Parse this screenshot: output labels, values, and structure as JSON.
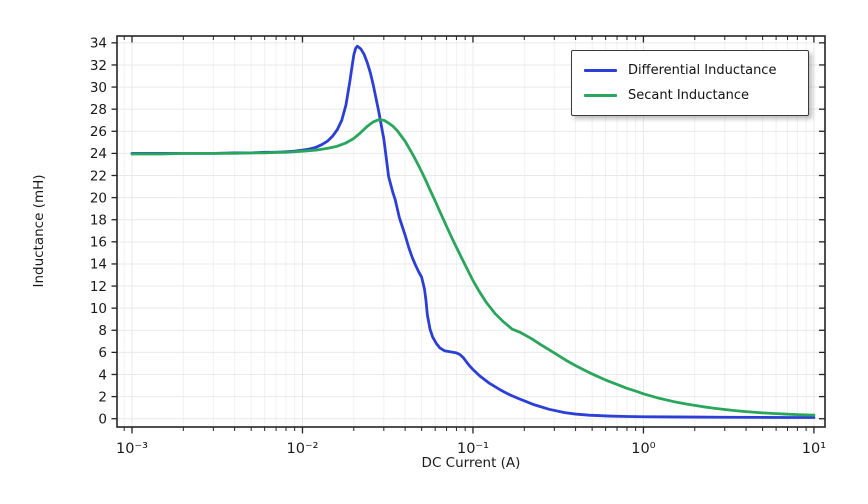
{
  "figure": {
    "background": "#ffffff",
    "frame_color": "#242424",
    "tick_color": "#242424",
    "grid_major_color": "#e9e9e9",
    "grid_minor_color": "#f1f1f1",
    "text_color": "#1a1a1a"
  },
  "axes": {
    "xlabel": "DC Current (A)",
    "ylabel": "Inductance (mH)",
    "x_scale": "log",
    "x_decade_exponents": [
      -3,
      -2,
      -1,
      0,
      1
    ],
    "x_tick_labels": [
      "10⁻³",
      "10⁻²",
      "10⁻¹",
      "10⁰",
      "10¹"
    ],
    "x_minor_mantissas": [
      2,
      3,
      4,
      5,
      6,
      7,
      8,
      9
    ],
    "x_range_exp": [
      -3.088,
      1.065
    ],
    "y_range_draw": [
      -0.75,
      34.62
    ],
    "y_ticks": [
      0,
      2,
      4,
      6,
      8,
      10,
      12,
      14,
      16,
      18,
      20,
      22,
      24,
      26,
      28,
      30,
      32,
      34
    ]
  },
  "legend": {
    "position": "top-right"
  },
  "chart_data": {
    "type": "line",
    "title": "",
    "xlabel": "DC Current (A)",
    "ylabel": "Inductance (mH)",
    "x_scale": "log",
    "xlim": [
      0.00082,
      11.6
    ],
    "ylim": [
      0,
      34
    ],
    "grid": true,
    "legend_position": "top-right",
    "series": [
      {
        "name": "Differential Inductance",
        "color": "#2b3fd6",
        "points": [
          [
            0.001,
            24.0
          ],
          [
            0.0015,
            24.0
          ],
          [
            0.002,
            24.0
          ],
          [
            0.003,
            24.0
          ],
          [
            0.004,
            24.05
          ],
          [
            0.005,
            24.05
          ],
          [
            0.006,
            24.1
          ],
          [
            0.007,
            24.1
          ],
          [
            0.008,
            24.15
          ],
          [
            0.009,
            24.2
          ],
          [
            0.01,
            24.3
          ],
          [
            0.011,
            24.4
          ],
          [
            0.012,
            24.55
          ],
          [
            0.013,
            24.8
          ],
          [
            0.014,
            25.1
          ],
          [
            0.015,
            25.55
          ],
          [
            0.016,
            26.15
          ],
          [
            0.017,
            27.0
          ],
          [
            0.018,
            28.4
          ],
          [
            0.019,
            30.6
          ],
          [
            0.0195,
            31.8
          ],
          [
            0.02,
            32.9
          ],
          [
            0.0205,
            33.5
          ],
          [
            0.021,
            33.7
          ],
          [
            0.022,
            33.45
          ],
          [
            0.023,
            32.95
          ],
          [
            0.024,
            32.2
          ],
          [
            0.025,
            31.3
          ],
          [
            0.026,
            30.2
          ],
          [
            0.028,
            27.8
          ],
          [
            0.03,
            25.3
          ],
          [
            0.031,
            23.6
          ],
          [
            0.032,
            21.9
          ],
          [
            0.034,
            20.4
          ],
          [
            0.035,
            19.8
          ],
          [
            0.037,
            18.2
          ],
          [
            0.04,
            16.6
          ],
          [
            0.042,
            15.5
          ],
          [
            0.044,
            14.6
          ],
          [
            0.046,
            13.9
          ],
          [
            0.048,
            13.3
          ],
          [
            0.05,
            12.8
          ],
          [
            0.052,
            11.7
          ],
          [
            0.053,
            10.7
          ],
          [
            0.054,
            9.4
          ],
          [
            0.056,
            8.1
          ],
          [
            0.058,
            7.4
          ],
          [
            0.061,
            6.8
          ],
          [
            0.064,
            6.4
          ],
          [
            0.068,
            6.15
          ],
          [
            0.074,
            6.05
          ],
          [
            0.08,
            5.95
          ],
          [
            0.084,
            5.8
          ],
          [
            0.088,
            5.5
          ],
          [
            0.092,
            5.1
          ],
          [
            0.096,
            4.75
          ],
          [
            0.1,
            4.45
          ],
          [
            0.11,
            3.85
          ],
          [
            0.125,
            3.2
          ],
          [
            0.145,
            2.6
          ],
          [
            0.165,
            2.15
          ],
          [
            0.19,
            1.75
          ],
          [
            0.23,
            1.25
          ],
          [
            0.28,
            0.85
          ],
          [
            0.345,
            0.55
          ],
          [
            0.4,
            0.42
          ],
          [
            0.48,
            0.32
          ],
          [
            0.63,
            0.24
          ],
          [
            0.8,
            0.2
          ],
          [
            1.0,
            0.18
          ],
          [
            1.5,
            0.16
          ],
          [
            2.0,
            0.15
          ],
          [
            3.0,
            0.13
          ],
          [
            5.0,
            0.12
          ],
          [
            7.0,
            0.11
          ],
          [
            10.0,
            0.11
          ]
        ]
      },
      {
        "name": "Secant Inductance",
        "color": "#29a65b",
        "points": [
          [
            0.001,
            23.95
          ],
          [
            0.0015,
            23.95
          ],
          [
            0.002,
            24.0
          ],
          [
            0.003,
            24.0
          ],
          [
            0.004,
            24.0
          ],
          [
            0.005,
            24.05
          ],
          [
            0.006,
            24.05
          ],
          [
            0.007,
            24.1
          ],
          [
            0.008,
            24.1
          ],
          [
            0.009,
            24.15
          ],
          [
            0.01,
            24.2
          ],
          [
            0.012,
            24.3
          ],
          [
            0.014,
            24.45
          ],
          [
            0.016,
            24.65
          ],
          [
            0.018,
            24.95
          ],
          [
            0.02,
            25.35
          ],
          [
            0.022,
            25.9
          ],
          [
            0.024,
            26.45
          ],
          [
            0.026,
            26.85
          ],
          [
            0.028,
            27.05
          ],
          [
            0.03,
            27.0
          ],
          [
            0.032,
            26.75
          ],
          [
            0.034,
            26.45
          ],
          [
            0.036,
            26.05
          ],
          [
            0.04,
            25.1
          ],
          [
            0.044,
            24.0
          ],
          [
            0.048,
            22.9
          ],
          [
            0.052,
            21.8
          ],
          [
            0.056,
            20.7
          ],
          [
            0.06,
            19.7
          ],
          [
            0.065,
            18.5
          ],
          [
            0.07,
            17.4
          ],
          [
            0.075,
            16.4
          ],
          [
            0.08,
            15.5
          ],
          [
            0.09,
            13.9
          ],
          [
            0.1,
            12.5
          ],
          [
            0.11,
            11.4
          ],
          [
            0.12,
            10.5
          ],
          [
            0.135,
            9.5
          ],
          [
            0.15,
            8.8
          ],
          [
            0.17,
            8.1
          ],
          [
            0.19,
            7.8
          ],
          [
            0.22,
            7.25
          ],
          [
            0.25,
            6.7
          ],
          [
            0.3,
            5.95
          ],
          [
            0.35,
            5.3
          ],
          [
            0.4,
            4.8
          ],
          [
            0.45,
            4.4
          ],
          [
            0.5,
            4.05
          ],
          [
            0.6,
            3.5
          ],
          [
            0.7,
            3.1
          ],
          [
            0.8,
            2.75
          ],
          [
            0.9,
            2.5
          ],
          [
            1.0,
            2.25
          ],
          [
            1.2,
            1.9
          ],
          [
            1.5,
            1.55
          ],
          [
            1.8,
            1.32
          ],
          [
            2.2,
            1.1
          ],
          [
            2.6,
            0.95
          ],
          [
            3.0,
            0.83
          ],
          [
            3.5,
            0.72
          ],
          [
            4.0,
            0.64
          ],
          [
            5.0,
            0.53
          ],
          [
            6.0,
            0.46
          ],
          [
            7.0,
            0.41
          ],
          [
            8.0,
            0.37
          ],
          [
            9.0,
            0.34
          ],
          [
            10.0,
            0.32
          ]
        ]
      }
    ]
  }
}
